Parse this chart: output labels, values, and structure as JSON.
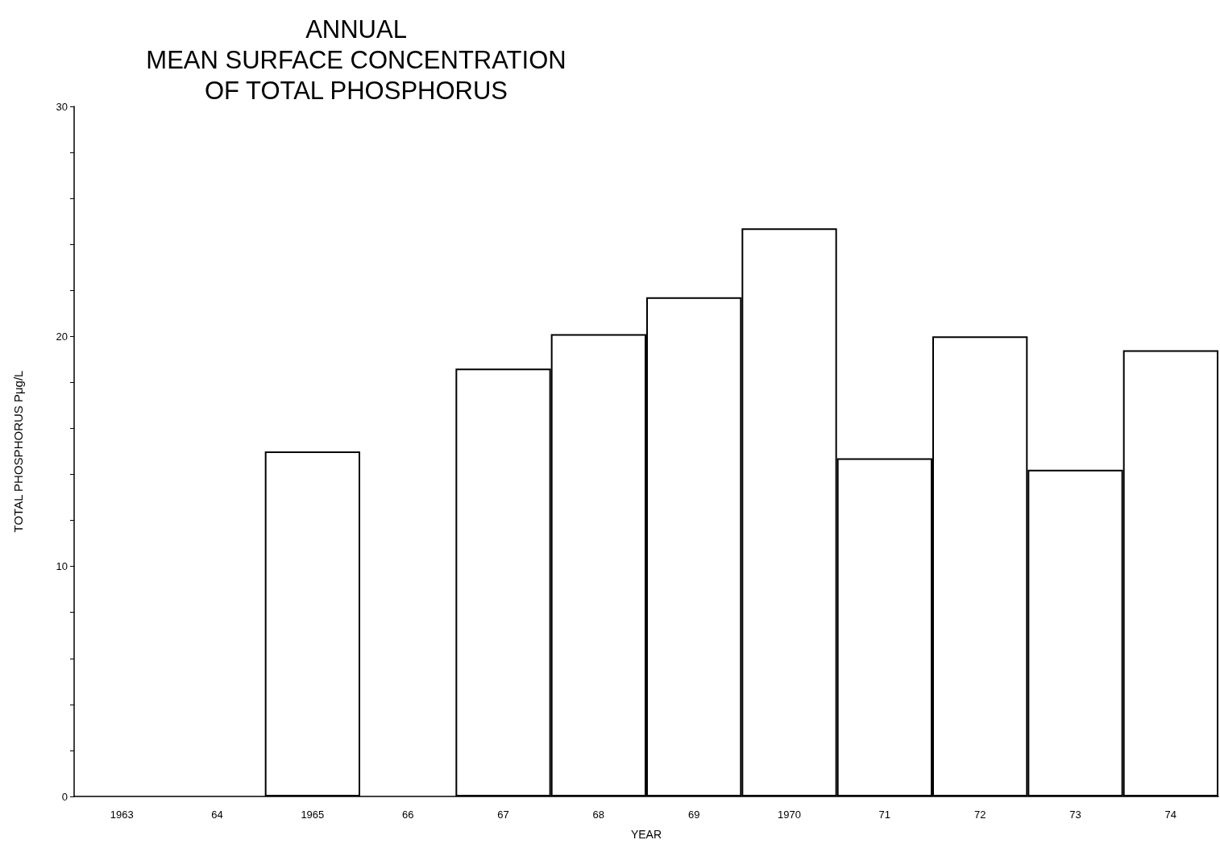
{
  "chart_data": {
    "type": "bar",
    "title": "ANNUAL\nMEAN SURFACE CONCENTRATION\nOF TOTAL PHOSPHORUS",
    "xlabel": "YEAR",
    "ylabel": "TOTAL PHOSPHORUS Pμg/L",
    "categories": [
      "1963",
      "64",
      "1965",
      "66",
      "67",
      "68",
      "69",
      "1970",
      "71",
      "72",
      "73",
      "74"
    ],
    "values": [
      null,
      null,
      15.0,
      null,
      18.6,
      20.1,
      21.7,
      24.7,
      14.7,
      20.0,
      14.2,
      19.4
    ],
    "color": "#ffffff",
    "ylim": [
      0,
      30
    ],
    "yticks": [
      0,
      {
        "value": 2,
        "label": null
      },
      {
        "value": 4,
        "label": null
      },
      {
        "value": 6,
        "label": null
      },
      {
        "value": 8,
        "label": null
      },
      10,
      {
        "value": 12,
        "label": null
      },
      {
        "value": 14,
        "label": null
      },
      {
        "value": 16,
        "label": null
      },
      {
        "value": 18,
        "label": null
      },
      20,
      {
        "value": 22,
        "label": null
      },
      {
        "value": 24,
        "label": null
      },
      {
        "value": 26,
        "label": null
      },
      {
        "value": 28,
        "label": null
      },
      30
    ],
    "grid": false
  }
}
